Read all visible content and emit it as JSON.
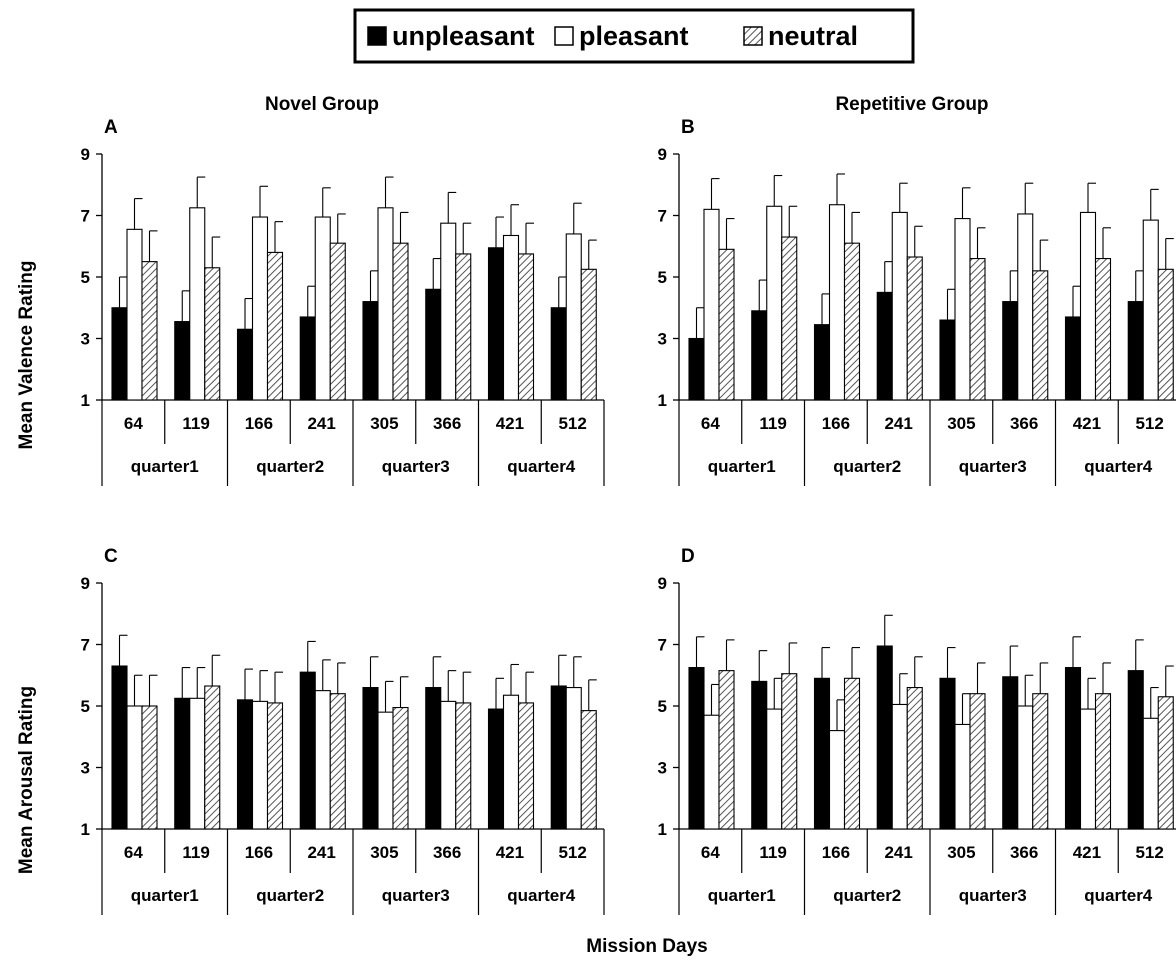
{
  "legend": {
    "items": [
      {
        "label": "unpleasant",
        "style": "solid"
      },
      {
        "label": "pleasant",
        "style": "hollow"
      },
      {
        "label": "neutral",
        "style": "hatched"
      }
    ]
  },
  "columns": {
    "left_title": "Novel Group",
    "right_title": "Repetitive Group"
  },
  "axis_labels": {
    "valence": "Mean Valence Rating",
    "arousal": "Mean Arousal Rating",
    "x": "Mission Days"
  },
  "colors": {
    "unpleasant": "#000000",
    "pleasant": "#ffffff",
    "neutral_hatch": "#555555"
  },
  "chart_data": [
    {
      "type": "bar",
      "panel": "A",
      "ylim": [
        1,
        9
      ],
      "yticks": [
        1,
        3,
        5,
        7,
        9
      ],
      "categories": [
        "64",
        "119",
        "166",
        "241",
        "305",
        "366",
        "421",
        "512"
      ],
      "groups": [
        "quarter1",
        "quarter2",
        "quarter3",
        "quarter4"
      ],
      "series": [
        {
          "name": "unpleasant",
          "values": [
            4.0,
            3.55,
            3.3,
            3.7,
            4.2,
            4.6,
            5.95,
            4.0
          ],
          "errors": [
            1.0,
            1.0,
            1.0,
            1.0,
            1.0,
            1.0,
            1.0,
            1.0
          ]
        },
        {
          "name": "pleasant",
          "values": [
            6.55,
            7.25,
            6.95,
            6.95,
            7.25,
            6.75,
            6.35,
            6.4
          ],
          "errors": [
            1.0,
            1.0,
            1.0,
            0.95,
            1.0,
            1.0,
            1.0,
            1.0
          ]
        },
        {
          "name": "neutral",
          "values": [
            5.5,
            5.3,
            5.8,
            6.1,
            6.1,
            5.75,
            5.75,
            5.25
          ],
          "errors": [
            1.0,
            1.0,
            1.0,
            0.95,
            1.0,
            1.0,
            1.0,
            0.95
          ]
        }
      ]
    },
    {
      "type": "bar",
      "panel": "B",
      "ylim": [
        1,
        9
      ],
      "yticks": [
        1,
        3,
        5,
        7,
        9
      ],
      "categories": [
        "64",
        "119",
        "166",
        "241",
        "305",
        "366",
        "421",
        "512"
      ],
      "groups": [
        "quarter1",
        "quarter2",
        "quarter3",
        "quarter4"
      ],
      "series": [
        {
          "name": "unpleasant",
          "values": [
            3.0,
            3.9,
            3.45,
            4.5,
            3.6,
            4.2,
            3.7,
            4.2
          ],
          "errors": [
            1.0,
            1.0,
            1.0,
            1.0,
            1.0,
            1.0,
            1.0,
            1.0
          ]
        },
        {
          "name": "pleasant",
          "values": [
            7.2,
            7.3,
            7.35,
            7.1,
            6.9,
            7.05,
            7.1,
            6.85
          ],
          "errors": [
            1.0,
            1.0,
            1.0,
            0.95,
            1.0,
            1.0,
            0.95,
            1.0
          ]
        },
        {
          "name": "neutral",
          "values": [
            5.9,
            6.3,
            6.1,
            5.65,
            5.6,
            5.2,
            5.6,
            5.25
          ],
          "errors": [
            1.0,
            1.0,
            1.0,
            1.0,
            1.0,
            1.0,
            1.0,
            1.0
          ]
        }
      ]
    },
    {
      "type": "bar",
      "panel": "C",
      "ylim": [
        1,
        9
      ],
      "yticks": [
        1,
        3,
        5,
        7,
        9
      ],
      "categories": [
        "64",
        "119",
        "166",
        "241",
        "305",
        "366",
        "421",
        "512"
      ],
      "groups": [
        "quarter1",
        "quarter2",
        "quarter3",
        "quarter4"
      ],
      "series": [
        {
          "name": "unpleasant",
          "values": [
            6.3,
            5.25,
            5.2,
            6.1,
            5.6,
            5.6,
            4.9,
            5.65
          ],
          "errors": [
            1.0,
            1.0,
            1.0,
            1.0,
            1.0,
            1.0,
            1.0,
            1.0
          ]
        },
        {
          "name": "pleasant",
          "values": [
            5.0,
            5.25,
            5.15,
            5.5,
            4.8,
            5.15,
            5.35,
            5.6
          ],
          "errors": [
            1.0,
            1.0,
            1.0,
            1.0,
            1.0,
            1.0,
            1.0,
            1.0
          ]
        },
        {
          "name": "neutral",
          "values": [
            5.0,
            5.65,
            5.1,
            5.4,
            4.95,
            5.1,
            5.1,
            4.85
          ],
          "errors": [
            1.0,
            1.0,
            1.0,
            1.0,
            1.0,
            1.0,
            1.0,
            1.0
          ]
        }
      ]
    },
    {
      "type": "bar",
      "panel": "D",
      "ylim": [
        1,
        9
      ],
      "yticks": [
        1,
        3,
        5,
        7,
        9
      ],
      "categories": [
        "64",
        "119",
        "166",
        "241",
        "305",
        "366",
        "421",
        "512"
      ],
      "groups": [
        "quarter1",
        "quarter2",
        "quarter3",
        "quarter4"
      ],
      "series": [
        {
          "name": "unpleasant",
          "values": [
            6.25,
            5.8,
            5.9,
            6.95,
            5.9,
            5.95,
            6.25,
            6.15
          ],
          "errors": [
            1.0,
            1.0,
            1.0,
            1.0,
            1.0,
            1.0,
            1.0,
            1.0
          ]
        },
        {
          "name": "pleasant",
          "values": [
            4.7,
            4.9,
            4.2,
            5.05,
            4.4,
            5.0,
            4.9,
            4.6
          ],
          "errors": [
            1.0,
            1.0,
            1.0,
            1.0,
            1.0,
            1.0,
            1.0,
            1.0
          ]
        },
        {
          "name": "neutral",
          "values": [
            6.15,
            6.05,
            5.9,
            5.6,
            5.4,
            5.4,
            5.4,
            5.3
          ],
          "errors": [
            1.0,
            1.0,
            1.0,
            1.0,
            1.0,
            1.0,
            1.0,
            1.0
          ]
        }
      ]
    }
  ]
}
